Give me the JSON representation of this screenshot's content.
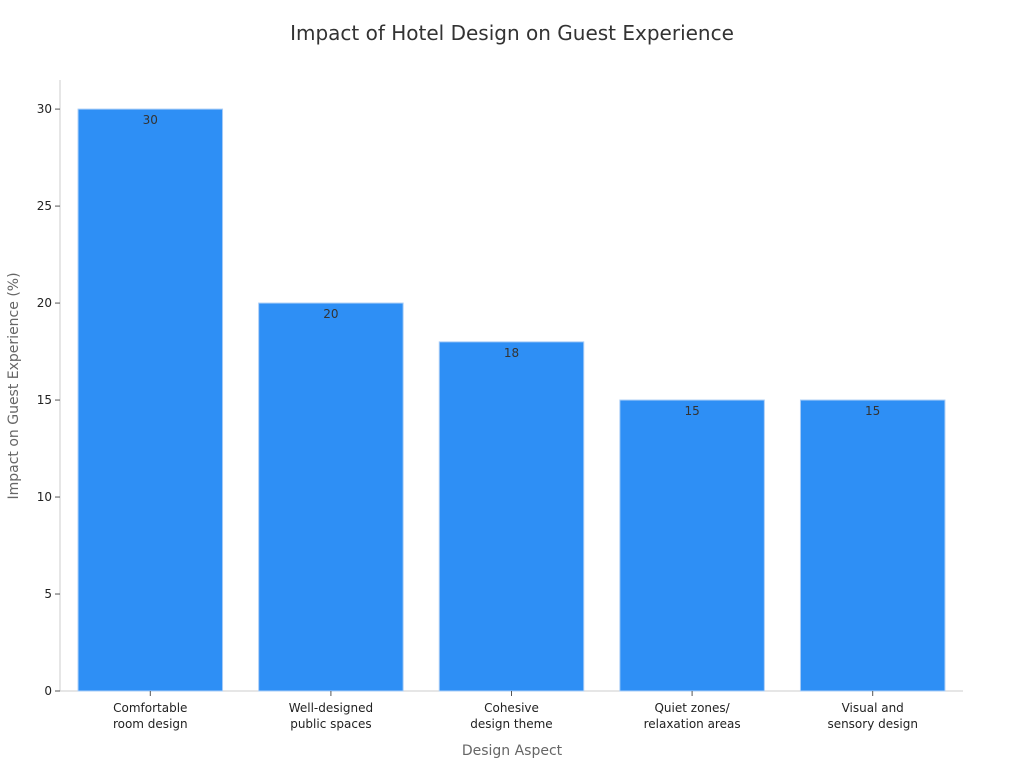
{
  "chart_data": {
    "type": "bar",
    "title": "Impact of Hotel Design on Guest Experience",
    "xlabel": "Design Aspect",
    "ylabel": "Impact on Guest Experience (%)",
    "categories": [
      [
        "Comfortable",
        "room design"
      ],
      [
        "Well-designed",
        "public spaces"
      ],
      [
        "Cohesive",
        "design theme"
      ],
      [
        "Quiet zones/",
        "relaxation areas"
      ],
      [
        "Visual and",
        "sensory design"
      ]
    ],
    "values": [
      30,
      20,
      18,
      15,
      15
    ],
    "data_labels": [
      "30",
      "20",
      "18",
      "15",
      "15"
    ],
    "ylim": [
      0,
      31.5
    ],
    "yticks": [
      0,
      5,
      10,
      15,
      20,
      25,
      30
    ],
    "grid": false,
    "legend": "none",
    "colors": {
      "bar": "#2e8ff5",
      "bar_edge": "#a9cdf6",
      "axis": "#cccccc",
      "tick_text": "#222222",
      "label_text": "#666666",
      "title_text": "#333333",
      "data_label_text": "#333333"
    }
  }
}
